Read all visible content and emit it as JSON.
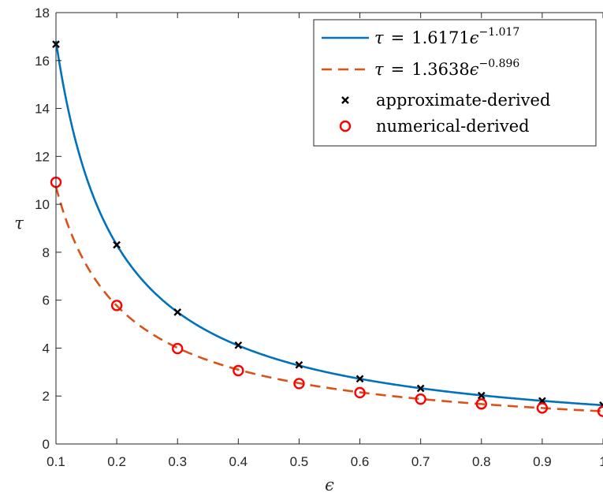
{
  "chart_data": {
    "type": "line",
    "xlabel": "ϵ",
    "ylabel": "τ",
    "xlim": [
      0.1,
      1
    ],
    "ylim": [
      0,
      18
    ],
    "xticks": [
      "0.1",
      "0.2",
      "0.3",
      "0.4",
      "0.5",
      "0.6",
      "0.7",
      "0.8",
      "0.9",
      "1"
    ],
    "yticks": [
      "0",
      "2",
      "4",
      "6",
      "8",
      "10",
      "12",
      "14",
      "16",
      "18"
    ],
    "grid": false,
    "legend_position": "top-right",
    "series": [
      {
        "name": "τ = 1.6171ϵ^−1.017",
        "kind": "fit-curve",
        "line_style": "solid",
        "color": "#0072BD",
        "coefficient": 1.6171,
        "exponent": -1.017,
        "legend": {
          "lhs": "τ",
          "eq": "=",
          "coef": "1.6171",
          "var": "ϵ",
          "exp": "−1.017"
        }
      },
      {
        "name": "τ = 1.3638ϵ^−0.896",
        "kind": "fit-curve",
        "line_style": "dashed",
        "color": "#D95319",
        "coefficient": 1.3638,
        "exponent": -0.896,
        "legend": {
          "lhs": "τ",
          "eq": "=",
          "coef": "1.3638",
          "var": "ϵ",
          "exp": "−0.896"
        }
      },
      {
        "name": "approximate-derived",
        "kind": "markers",
        "marker": "x",
        "color": "#000000",
        "x": [
          0.1,
          0.2,
          0.3,
          0.4,
          0.5,
          0.6,
          0.7,
          0.8,
          0.9,
          1.0
        ],
        "y": [
          16.68,
          8.31,
          5.5,
          4.12,
          3.3,
          2.72,
          2.32,
          2.02,
          1.8,
          1.62
        ]
      },
      {
        "name": "numerical-derived",
        "kind": "markers",
        "marker": "o",
        "color": "#FF0000",
        "x": [
          0.1,
          0.2,
          0.3,
          0.4,
          0.5,
          0.6,
          0.7,
          0.8,
          0.9,
          1.0
        ],
        "y": [
          10.92,
          5.78,
          3.98,
          3.06,
          2.52,
          2.14,
          1.87,
          1.67,
          1.5,
          1.36
        ]
      }
    ]
  }
}
